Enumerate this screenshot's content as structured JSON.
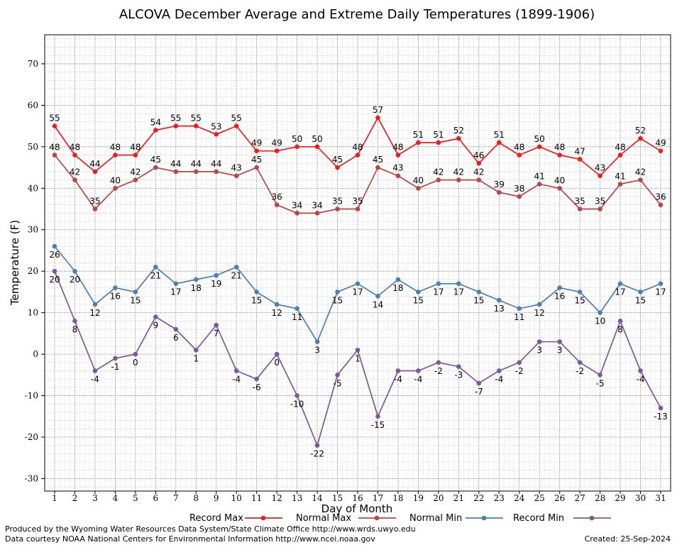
{
  "chart_data": {
    "type": "line",
    "title": "ALCOVA December Average and Extreme Daily Temperatures (1899-1906)",
    "xlabel": "Day of Month",
    "ylabel": "Temperature (F)",
    "ylim": [
      -33,
      77
    ],
    "yticks": [
      -30,
      -20,
      -10,
      0,
      10,
      20,
      30,
      40,
      50,
      60,
      70
    ],
    "x": [
      1,
      2,
      3,
      4,
      5,
      6,
      7,
      8,
      9,
      10,
      11,
      12,
      13,
      14,
      15,
      16,
      17,
      18,
      19,
      20,
      21,
      22,
      23,
      24,
      25,
      26,
      27,
      28,
      29,
      30,
      31
    ],
    "grid": true,
    "legend_position": "bottom",
    "series": [
      {
        "name": "Record Max",
        "color": "#ee1c1c",
        "values": [
          55,
          48,
          44,
          48,
          48,
          54,
          55,
          55,
          53,
          55,
          49,
          49,
          50,
          50,
          45,
          48,
          57,
          48,
          51,
          51,
          52,
          46,
          51,
          48,
          50,
          48,
          47,
          43,
          48,
          52,
          49
        ]
      },
      {
        "name": "Normal Max",
        "color": "#b84646",
        "values": [
          48,
          42,
          35,
          40,
          42,
          45,
          44,
          44,
          44,
          43,
          45,
          36,
          34,
          34,
          35,
          35,
          45,
          43,
          40,
          42,
          42,
          42,
          39,
          38,
          41,
          40,
          35,
          35,
          41,
          42,
          36
        ]
      },
      {
        "name": "Normal Min",
        "color": "#4a7fb5",
        "values": [
          26,
          20,
          12,
          16,
          15,
          21,
          17,
          18,
          19,
          21,
          15,
          12,
          11,
          3,
          15,
          17,
          14,
          18,
          15,
          17,
          17,
          15,
          13,
          11,
          12,
          16,
          15,
          10,
          17,
          15,
          17
        ]
      },
      {
        "name": "Record Min",
        "color": "#7b579b",
        "values": [
          20,
          8,
          -4,
          -1,
          0,
          9,
          6,
          1,
          7,
          -4,
          -6,
          0,
          -10,
          -22,
          -5,
          1,
          -15,
          -4,
          -4,
          -2,
          -3,
          -7,
          -4,
          -2,
          3,
          3,
          -2,
          -5,
          8,
          -4,
          -13
        ]
      }
    ]
  },
  "footer": {
    "produced_by": "Produced by the Wyoming Water Resources Data System/State Climate Office http://www.wrds.uwyo.edu",
    "courtesy": "Data courtesy NOAA National Centers for Environmental Information http://www.ncei.noaa.gov",
    "created": "Created:  25-Sep-2024"
  }
}
